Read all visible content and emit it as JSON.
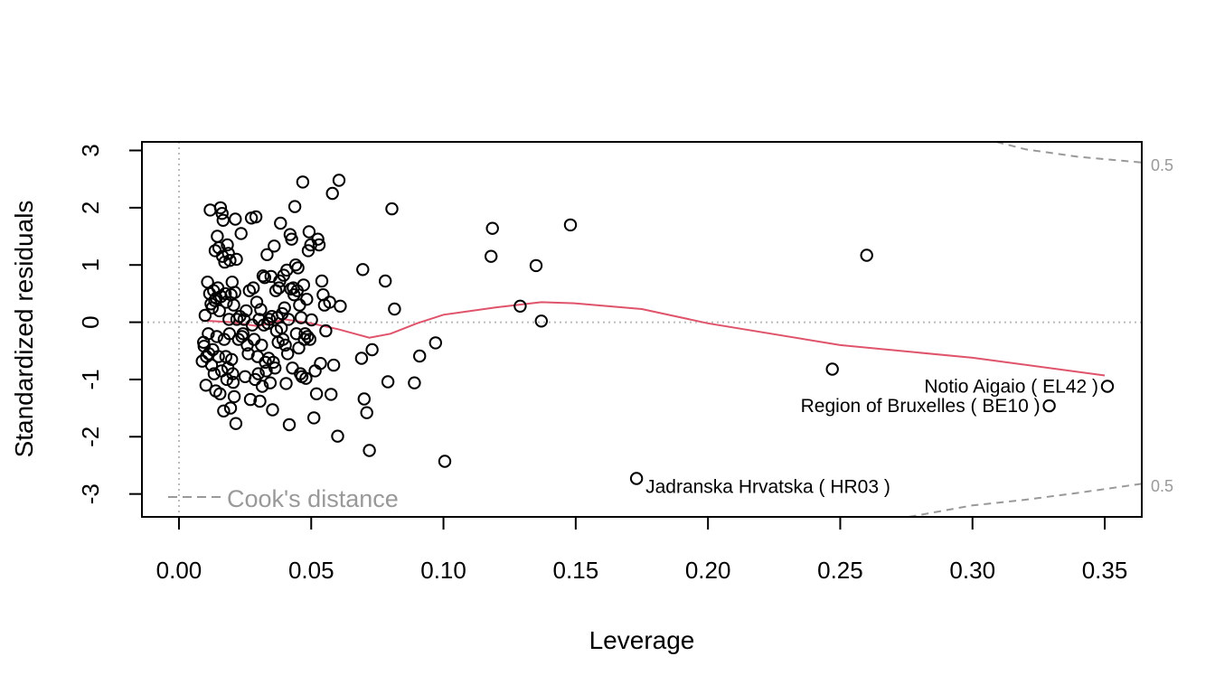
{
  "chart_data": {
    "type": "scatter",
    "xlabel": "Leverage",
    "ylabel": "Standardized residuals",
    "xlim": [
      -0.014,
      0.364
    ],
    "ylim": [
      -3.4,
      3.15
    ],
    "x_ticks": [
      0.0,
      0.05,
      0.1,
      0.15,
      0.2,
      0.25,
      0.3,
      0.35
    ],
    "x_tick_labels": [
      "0.00",
      "0.05",
      "0.10",
      "0.15",
      "0.20",
      "0.25",
      "0.30",
      "0.35"
    ],
    "y_ticks": [
      -3,
      -2,
      -1,
      0,
      1,
      2,
      3
    ],
    "y_tick_labels": [
      "-3",
      "-2",
      "-1",
      "0",
      "1",
      "2",
      "3"
    ],
    "grid": false,
    "reference_lines": {
      "x": 0,
      "y": 0
    },
    "legend": {
      "text": "Cook's distance",
      "placement": "bottom-left",
      "color": "#999999"
    },
    "colors": {
      "points": "#000000",
      "smooth": "#DF536B",
      "cook": "#999999",
      "reference": "#bbbbbb"
    },
    "points": [
      [
        0.0088,
        -0.68
      ],
      [
        0.0093,
        -0.35
      ],
      [
        0.0095,
        -0.42
      ],
      [
        0.0099,
        0.12
      ],
      [
        0.0102,
        -1.1
      ],
      [
        0.0104,
        -0.6
      ],
      [
        0.0108,
        0.7
      ],
      [
        0.0111,
        -0.2
      ],
      [
        0.0113,
        -0.55
      ],
      [
        0.0116,
        0.5
      ],
      [
        0.0118,
        1.96
      ],
      [
        0.0121,
        0.32
      ],
      [
        0.0123,
        -0.75
      ],
      [
        0.0126,
        0.25
      ],
      [
        0.0128,
        -0.48
      ],
      [
        0.0131,
        0.55
      ],
      [
        0.0133,
        -0.9
      ],
      [
        0.0135,
        0.38
      ],
      [
        0.0137,
        1.25
      ],
      [
        0.0139,
        -1.2
      ],
      [
        0.0141,
        0.42
      ],
      [
        0.0143,
        -0.25
      ],
      [
        0.0145,
        1.5
      ],
      [
        0.0147,
        0.6
      ],
      [
        0.0149,
        -0.6
      ],
      [
        0.0151,
        1.3
      ],
      [
        0.0153,
        0.2
      ],
      [
        0.0155,
        -1.25
      ],
      [
        0.0157,
        2.0
      ],
      [
        0.0159,
        0.45
      ],
      [
        0.0161,
        -0.85
      ],
      [
        0.0163,
        1.9
      ],
      [
        0.0165,
        1.15
      ],
      [
        0.0167,
        1.78
      ],
      [
        0.0169,
        -1.55
      ],
      [
        0.0171,
        -0.3
      ],
      [
        0.0173,
        1.05
      ],
      [
        0.0175,
        0.5
      ],
      [
        0.0177,
        -0.6
      ],
      [
        0.0179,
        0.35
      ],
      [
        0.0181,
        -1.0
      ],
      [
        0.0183,
        1.35
      ],
      [
        0.0185,
        -0.8
      ],
      [
        0.0187,
        1.2
      ],
      [
        0.0189,
        0.05
      ],
      [
        0.0191,
        -0.2
      ],
      [
        0.0193,
        1.08
      ],
      [
        0.0195,
        -1.5
      ],
      [
        0.0197,
        0.48
      ],
      [
        0.0199,
        -0.65
      ],
      [
        0.0201,
        0.7
      ],
      [
        0.0203,
        -0.9
      ],
      [
        0.0205,
        -1.05
      ],
      [
        0.0207,
        0.3
      ],
      [
        0.0209,
        -1.3
      ],
      [
        0.0211,
        0.52
      ],
      [
        0.0213,
        1.8
      ],
      [
        0.0215,
        -1.77
      ],
      [
        0.0217,
        1.1
      ],
      [
        0.0219,
        0.05
      ],
      [
        0.0225,
        -0.3
      ],
      [
        0.023,
        0.1
      ],
      [
        0.0235,
        1.55
      ],
      [
        0.0238,
        -0.25
      ],
      [
        0.0242,
        -0.2
      ],
      [
        0.0246,
        0.05
      ],
      [
        0.025,
        -0.95
      ],
      [
        0.0254,
        0.2
      ],
      [
        0.0258,
        -0.4
      ],
      [
        0.0262,
        -0.55
      ],
      [
        0.0266,
        0.55
      ],
      [
        0.027,
        -1.35
      ],
      [
        0.0274,
        1.82
      ],
      [
        0.0277,
        -0.05
      ],
      [
        0.0281,
        0.6
      ],
      [
        0.0284,
        -0.3
      ],
      [
        0.0288,
        -1.0
      ],
      [
        0.0291,
        1.84
      ],
      [
        0.0294,
        0.35
      ],
      [
        0.0297,
        -0.6
      ],
      [
        0.03,
        -0.9
      ],
      [
        0.0303,
        0.05
      ],
      [
        0.0306,
        -1.38
      ],
      [
        0.0309,
        0.22
      ],
      [
        0.0312,
        -0.4
      ],
      [
        0.0315,
        -1.12
      ],
      [
        0.0318,
        0.81
      ],
      [
        0.0321,
        -0.05
      ],
      [
        0.0324,
        0.78
      ],
      [
        0.0327,
        -0.7
      ],
      [
        0.033,
        -0.85
      ],
      [
        0.0333,
        1.18
      ],
      [
        0.0336,
        -0.02
      ],
      [
        0.0339,
        -0.63
      ],
      [
        0.0342,
        0.05
      ],
      [
        0.0345,
        -1.06
      ],
      [
        0.0348,
        0.8
      ],
      [
        0.0351,
        0.1
      ],
      [
        0.0354,
        -1.53
      ],
      [
        0.0357,
        -0.7
      ],
      [
        0.036,
        1.33
      ],
      [
        0.0363,
        -0.8
      ],
      [
        0.0366,
        0.55
      ],
      [
        0.0369,
        -0.15
      ],
      [
        0.0372,
        0.08
      ],
      [
        0.0375,
        -0.35
      ],
      [
        0.0378,
        0.6
      ],
      [
        0.0381,
        0.72
      ],
      [
        0.0384,
        1.73
      ],
      [
        0.0387,
        -0.1
      ],
      [
        0.039,
        0.15
      ],
      [
        0.0393,
        -0.3
      ],
      [
        0.0396,
        0.82
      ],
      [
        0.0399,
        0.25
      ],
      [
        0.0402,
        -0.4
      ],
      [
        0.0405,
        -1.07
      ],
      [
        0.0408,
        0.91
      ],
      [
        0.0411,
        -0.55
      ],
      [
        0.0414,
        0.05
      ],
      [
        0.0417,
        -1.79
      ],
      [
        0.042,
        1.53
      ],
      [
        0.0423,
        0.58
      ],
      [
        0.0426,
        1.45
      ],
      [
        0.0429,
        -0.8
      ],
      [
        0.0432,
        0.6
      ],
      [
        0.0435,
        0.48
      ],
      [
        0.0438,
        2.02
      ],
      [
        0.0441,
        1.0
      ],
      [
        0.0444,
        -0.2
      ],
      [
        0.0447,
        0.55
      ],
      [
        0.045,
        0.95
      ],
      [
        0.0453,
        -0.45
      ],
      [
        0.0456,
        0.3
      ],
      [
        0.0459,
        -0.9
      ],
      [
        0.0462,
        0.08
      ],
      [
        0.0465,
        -0.95
      ],
      [
        0.0468,
        2.45
      ],
      [
        0.0471,
        0.65
      ],
      [
        0.0474,
        -0.3
      ],
      [
        0.0477,
        -0.2
      ],
      [
        0.048,
        -0.98
      ],
      [
        0.0483,
        0.4
      ],
      [
        0.0486,
        -0.25
      ],
      [
        0.0489,
        1.25
      ],
      [
        0.0492,
        1.58
      ],
      [
        0.0495,
        -0.3
      ],
      [
        0.0498,
        1.35
      ],
      [
        0.0501,
        0.04
      ],
      [
        0.051,
        -1.67
      ],
      [
        0.0515,
        -0.85
      ],
      [
        0.052,
        -1.25
      ],
      [
        0.0525,
        1.45
      ],
      [
        0.053,
        1.35
      ],
      [
        0.0535,
        -0.72
      ],
      [
        0.054,
        0.72
      ],
      [
        0.0545,
        0.48
      ],
      [
        0.055,
        0.3
      ],
      [
        0.0555,
        -0.15
      ],
      [
        0.057,
        0.35
      ],
      [
        0.0575,
        -1.26
      ],
      [
        0.058,
        2.25
      ],
      [
        0.0585,
        -0.75
      ],
      [
        0.06,
        -1.99
      ],
      [
        0.0605,
        2.48
      ],
      [
        0.061,
        0.28
      ],
      [
        0.069,
        -0.63
      ],
      [
        0.0695,
        0.92
      ],
      [
        0.07,
        -1.34
      ],
      [
        0.071,
        -1.58
      ],
      [
        0.072,
        -2.24
      ],
      [
        0.073,
        -0.48
      ],
      [
        0.078,
        0.72
      ],
      [
        0.079,
        -1.04
      ],
      [
        0.0805,
        1.98
      ],
      [
        0.0815,
        0.23
      ],
      [
        0.089,
        -1.06
      ],
      [
        0.091,
        -0.59
      ],
      [
        0.097,
        -0.36
      ],
      [
        0.1005,
        -2.43
      ],
      [
        0.118,
        1.15
      ],
      [
        0.1185,
        1.64
      ],
      [
        0.129,
        0.28
      ],
      [
        0.135,
        0.99
      ],
      [
        0.137,
        0.02
      ],
      [
        0.148,
        1.7
      ],
      [
        0.173,
        -2.73
      ],
      [
        0.247,
        -0.82
      ],
      [
        0.26,
        1.17
      ],
      [
        0.329,
        -1.46
      ],
      [
        0.351,
        -1.12
      ]
    ],
    "smooth_line": [
      [
        0.009,
        0.03
      ],
      [
        0.02,
        0.0
      ],
      [
        0.03,
        -0.07
      ],
      [
        0.04,
        0.05
      ],
      [
        0.05,
        -0.02
      ],
      [
        0.06,
        -0.12
      ],
      [
        0.072,
        -0.27
      ],
      [
        0.08,
        -0.2
      ],
      [
        0.09,
        -0.02
      ],
      [
        0.1,
        0.13
      ],
      [
        0.12,
        0.26
      ],
      [
        0.137,
        0.35
      ],
      [
        0.15,
        0.33
      ],
      [
        0.175,
        0.23
      ],
      [
        0.2,
        -0.02
      ],
      [
        0.25,
        -0.4
      ],
      [
        0.3,
        -0.62
      ],
      [
        0.35,
        -0.93
      ]
    ],
    "cook_upper": [
      [
        0.309,
        3.15
      ],
      [
        0.32,
        3.02
      ],
      [
        0.34,
        2.89
      ],
      [
        0.364,
        2.79
      ]
    ],
    "cook_lower": [
      [
        0.276,
        -3.4
      ],
      [
        0.3,
        -3.2
      ],
      [
        0.32,
        -3.1
      ],
      [
        0.34,
        -2.98
      ],
      [
        0.364,
        -2.82
      ]
    ],
    "cook_contour_labels": [
      "0.5",
      "0.5"
    ],
    "annotations": [
      {
        "text": "Notio Aigaio ( EL42 )",
        "x": 0.351,
        "y": -1.12
      },
      {
        "text": "Region of Bruxelles ( BE10 )",
        "x": 0.329,
        "y": -1.46
      },
      {
        "text": "Jadranska Hrvatska ( HR03 )",
        "x": 0.173,
        "y": -2.73
      }
    ]
  }
}
